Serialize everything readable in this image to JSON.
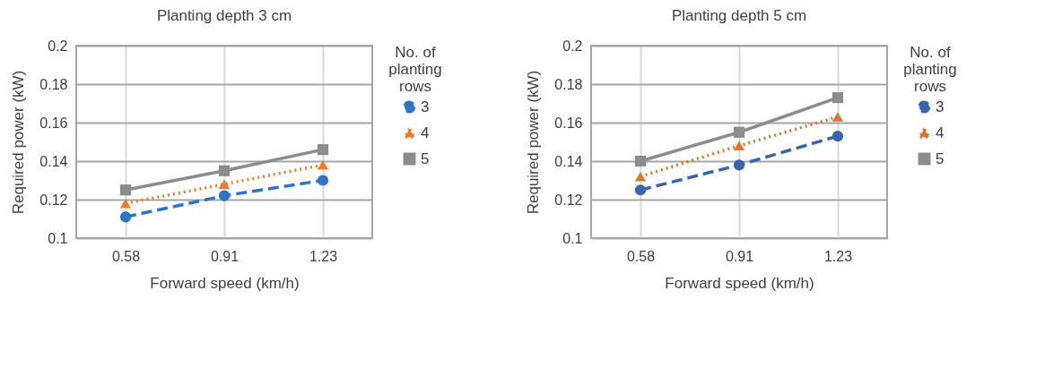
{
  "chart_data": [
    {
      "type": "line",
      "title": "Planting depth 3 cm",
      "xlabel": "Forward speed (km/h)",
      "ylabel": "Required power (kW)",
      "legend_title": "No. of planting rows",
      "legend": "right",
      "grid": true,
      "categories": [
        "0.58",
        "0.91",
        "1.23"
      ],
      "ylim": [
        0.1,
        0.2
      ],
      "yticks": [
        0.1,
        0.12,
        0.14,
        0.16,
        0.18,
        0.2
      ],
      "series": [
        {
          "name": "3",
          "color": "#2e75c6",
          "marker": "circle",
          "line_style": "dashed",
          "values": [
            0.111,
            0.122,
            0.13
          ]
        },
        {
          "name": "4",
          "color": "#ed7d31",
          "marker": "triangle",
          "line_style": "dotted",
          "values": [
            0.118,
            0.128,
            0.138
          ]
        },
        {
          "name": "5",
          "color": "#8c8c8c",
          "marker": "square",
          "line_style": "solid",
          "values": [
            0.125,
            0.135,
            0.146
          ]
        }
      ]
    },
    {
      "type": "line",
      "title": "Planting depth 5 cm",
      "xlabel": "Forward speed (km/h)",
      "ylabel": "Required power (kW)",
      "legend_title": "No. of planting rows",
      "legend": "right",
      "grid": true,
      "categories": [
        "0.58",
        "0.91",
        "1.23"
      ],
      "ylim": [
        0.1,
        0.2
      ],
      "yticks": [
        0.1,
        0.12,
        0.14,
        0.16,
        0.18,
        0.2
      ],
      "series": [
        {
          "name": "3",
          "color": "#3a66a8",
          "marker": "circle",
          "line_style": "dashed",
          "values": [
            0.125,
            0.138,
            0.153
          ]
        },
        {
          "name": "4",
          "color": "#d9772f",
          "marker": "triangle",
          "line_style": "dotted",
          "values": [
            0.132,
            0.148,
            0.163
          ]
        },
        {
          "name": "5",
          "color": "#8c8c8c",
          "marker": "square",
          "line_style": "solid",
          "values": [
            0.14,
            0.155,
            0.173
          ]
        }
      ]
    }
  ]
}
